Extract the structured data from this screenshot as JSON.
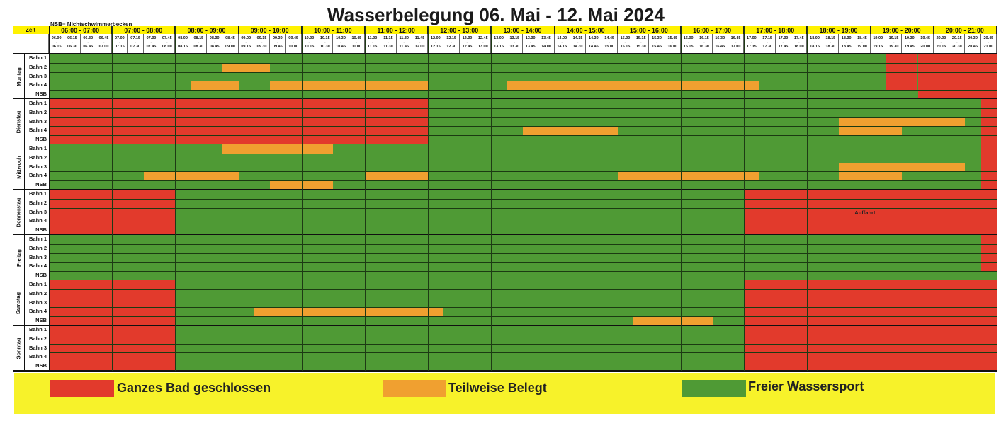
{
  "title": "Wasserbelegung 06. Mai - 12. Mai 2024",
  "note": "NSB= Nichtschwimmerbecken",
  "zeit_label": "Zeit",
  "hours": [
    "06:00 - 07:00",
    "07:00 - 08:00",
    "08:00 - 09:00",
    "09:00 - 10:00",
    "10:00 - 11:00",
    "11:00 - 12:00",
    "12:00 - 13:00",
    "13:00 - 14:00",
    "14:00 - 15:00",
    "15:00 - 16:00",
    "16:00 - 17:00",
    "17:00 - 18:00",
    "18:00 - 19:00",
    "19:00 - 20:00",
    "20:00 - 21:00"
  ],
  "slots": [
    [
      "06.00",
      "06.15"
    ],
    [
      "06.15",
      "06.30"
    ],
    [
      "06.30",
      "06.45"
    ],
    [
      "06.45",
      "07.00"
    ],
    [
      "07.00",
      "07.15"
    ],
    [
      "07.15",
      "07.30"
    ],
    [
      "07.30",
      "07.45"
    ],
    [
      "07.45",
      "08.00"
    ],
    [
      "08.00",
      "08.15"
    ],
    [
      "08.15",
      "08.30"
    ],
    [
      "08.30",
      "08.45"
    ],
    [
      "08.45",
      "09.00"
    ],
    [
      "09.00",
      "09.15"
    ],
    [
      "09.15",
      "09.30"
    ],
    [
      "09.30",
      "09.45"
    ],
    [
      "09.45",
      "10.00"
    ],
    [
      "10.00",
      "10.15"
    ],
    [
      "10.15",
      "10.30"
    ],
    [
      "10.30",
      "10.45"
    ],
    [
      "10.45",
      "11.00"
    ],
    [
      "11.00",
      "11.15"
    ],
    [
      "11.15",
      "11.30"
    ],
    [
      "11.30",
      "11.45"
    ],
    [
      "11.45",
      "12.00"
    ],
    [
      "12.00",
      "12.15"
    ],
    [
      "12.15",
      "12.30"
    ],
    [
      "12.30",
      "12.45"
    ],
    [
      "12.45",
      "13.00"
    ],
    [
      "13.00",
      "13.15"
    ],
    [
      "13.15",
      "13.30"
    ],
    [
      "13.30",
      "13.45"
    ],
    [
      "13.45",
      "14.00"
    ],
    [
      "14.00",
      "14.15"
    ],
    [
      "14.15",
      "14.30"
    ],
    [
      "14.30",
      "14.45"
    ],
    [
      "14.45",
      "15.00"
    ],
    [
      "15.00",
      "15.15"
    ],
    [
      "15.15",
      "15.30"
    ],
    [
      "15.30",
      "15.45"
    ],
    [
      "15.45",
      "16.00"
    ],
    [
      "16.00",
      "16.15"
    ],
    [
      "16.15",
      "16.30"
    ],
    [
      "16.30",
      "16.45"
    ],
    [
      "16.45",
      "17.00"
    ],
    [
      "17.00",
      "17.15"
    ],
    [
      "17.15",
      "17.30"
    ],
    [
      "17.30",
      "17.45"
    ],
    [
      "17.45",
      "18.00"
    ],
    [
      "18.00",
      "18.15"
    ],
    [
      "18.15",
      "18.30"
    ],
    [
      "18.30",
      "18.45"
    ],
    [
      "18.45",
      "19.00"
    ],
    [
      "19.00",
      "19.15"
    ],
    [
      "19.15",
      "19.30"
    ],
    [
      "19.30",
      "19.45"
    ],
    [
      "19.45",
      "20.00"
    ],
    [
      "20.00",
      "20.15"
    ],
    [
      "20.15",
      "20.30"
    ],
    [
      "20.30",
      "20.45"
    ],
    [
      "20.45",
      "21.00"
    ]
  ],
  "lanes": [
    "Bahn 1",
    "Bahn 2",
    "Bahn 3",
    "Bahn 4",
    "NSB"
  ],
  "colors": {
    "closed": "#e23a2c",
    "partial": "#f0a030",
    "free": "#4f9a35"
  },
  "days": [
    {
      "name": "Montag",
      "blocks": [
        {
          "lanes": [
            0,
            4
          ],
          "from": 55,
          "to": 60,
          "state": "closed"
        },
        {
          "lanes": [
            0,
            3
          ],
          "from": 53,
          "to": 55,
          "state": "closed"
        },
        {
          "lanes": [
            1
          ],
          "from": 11,
          "to": 14,
          "state": "partial"
        },
        {
          "lanes": [
            3
          ],
          "from": 9,
          "to": 12,
          "state": "partial"
        },
        {
          "lanes": [
            3
          ],
          "from": 14,
          "to": 16,
          "state": "partial"
        },
        {
          "lanes": [
            3
          ],
          "from": 16,
          "to": 24,
          "state": "partial"
        },
        {
          "lanes": [
            3
          ],
          "from": 29,
          "to": 45,
          "state": "partial"
        }
      ]
    },
    {
      "name": "Dienstag",
      "blocks": [
        {
          "lanes": [
            0,
            4
          ],
          "from": 0,
          "to": 24,
          "state": "closed"
        },
        {
          "lanes": [
            0,
            4
          ],
          "from": 59,
          "to": 60,
          "state": "closed"
        },
        {
          "lanes": [
            2
          ],
          "from": 50,
          "to": 58,
          "state": "partial"
        },
        {
          "lanes": [
            3
          ],
          "from": 30,
          "to": 36,
          "state": "partial"
        },
        {
          "lanes": [
            3
          ],
          "from": 50,
          "to": 54,
          "state": "partial"
        }
      ]
    },
    {
      "name": "Mittwoch",
      "blocks": [
        {
          "lanes": [
            0,
            4
          ],
          "from": 59,
          "to": 60,
          "state": "closed"
        },
        {
          "lanes": [
            0
          ],
          "from": 11,
          "to": 18,
          "state": "partial"
        },
        {
          "lanes": [
            2
          ],
          "from": 50,
          "to": 58,
          "state": "partial"
        },
        {
          "lanes": [
            3
          ],
          "from": 6,
          "to": 12,
          "state": "partial"
        },
        {
          "lanes": [
            3
          ],
          "from": 20,
          "to": 24,
          "state": "partial"
        },
        {
          "lanes": [
            3
          ],
          "from": 36,
          "to": 45,
          "state": "partial"
        },
        {
          "lanes": [
            3
          ],
          "from": 50,
          "to": 54,
          "state": "partial"
        },
        {
          "lanes": [
            4
          ],
          "from": 14,
          "to": 18,
          "state": "partial"
        }
      ]
    },
    {
      "name": "Donnerstag",
      "blocks": [
        {
          "lanes": [
            0,
            4
          ],
          "from": 0,
          "to": 8,
          "state": "closed"
        },
        {
          "lanes": [
            0,
            4
          ],
          "from": 44,
          "to": 60,
          "state": "closed"
        }
      ]
    },
    {
      "name": "Freitag",
      "blocks": [
        {
          "lanes": [
            0,
            3
          ],
          "from": 59,
          "to": 60,
          "state": "closed"
        }
      ]
    },
    {
      "name": "Samstag",
      "blocks": [
        {
          "lanes": [
            0,
            4
          ],
          "from": 0,
          "to": 8,
          "state": "closed"
        },
        {
          "lanes": [
            0,
            4
          ],
          "from": 44,
          "to": 60,
          "state": "closed"
        },
        {
          "lanes": [
            3
          ],
          "from": 13,
          "to": 25,
          "state": "partial"
        },
        {
          "lanes": [
            4
          ],
          "from": 37,
          "to": 42,
          "state": "partial"
        }
      ]
    },
    {
      "name": "Sonntag",
      "blocks": [
        {
          "lanes": [
            0,
            4
          ],
          "from": 0,
          "to": 8,
          "state": "closed"
        },
        {
          "lanes": [
            0,
            4
          ],
          "from": 44,
          "to": 60,
          "state": "closed"
        }
      ]
    }
  ],
  "annotation": "Auffahrt",
  "legend": [
    {
      "state": "closed",
      "label": "Ganzes Bad geschlossen"
    },
    {
      "state": "partial",
      "label": "Teilweise Belegt"
    },
    {
      "state": "free",
      "label": "Freier Wassersport"
    }
  ]
}
